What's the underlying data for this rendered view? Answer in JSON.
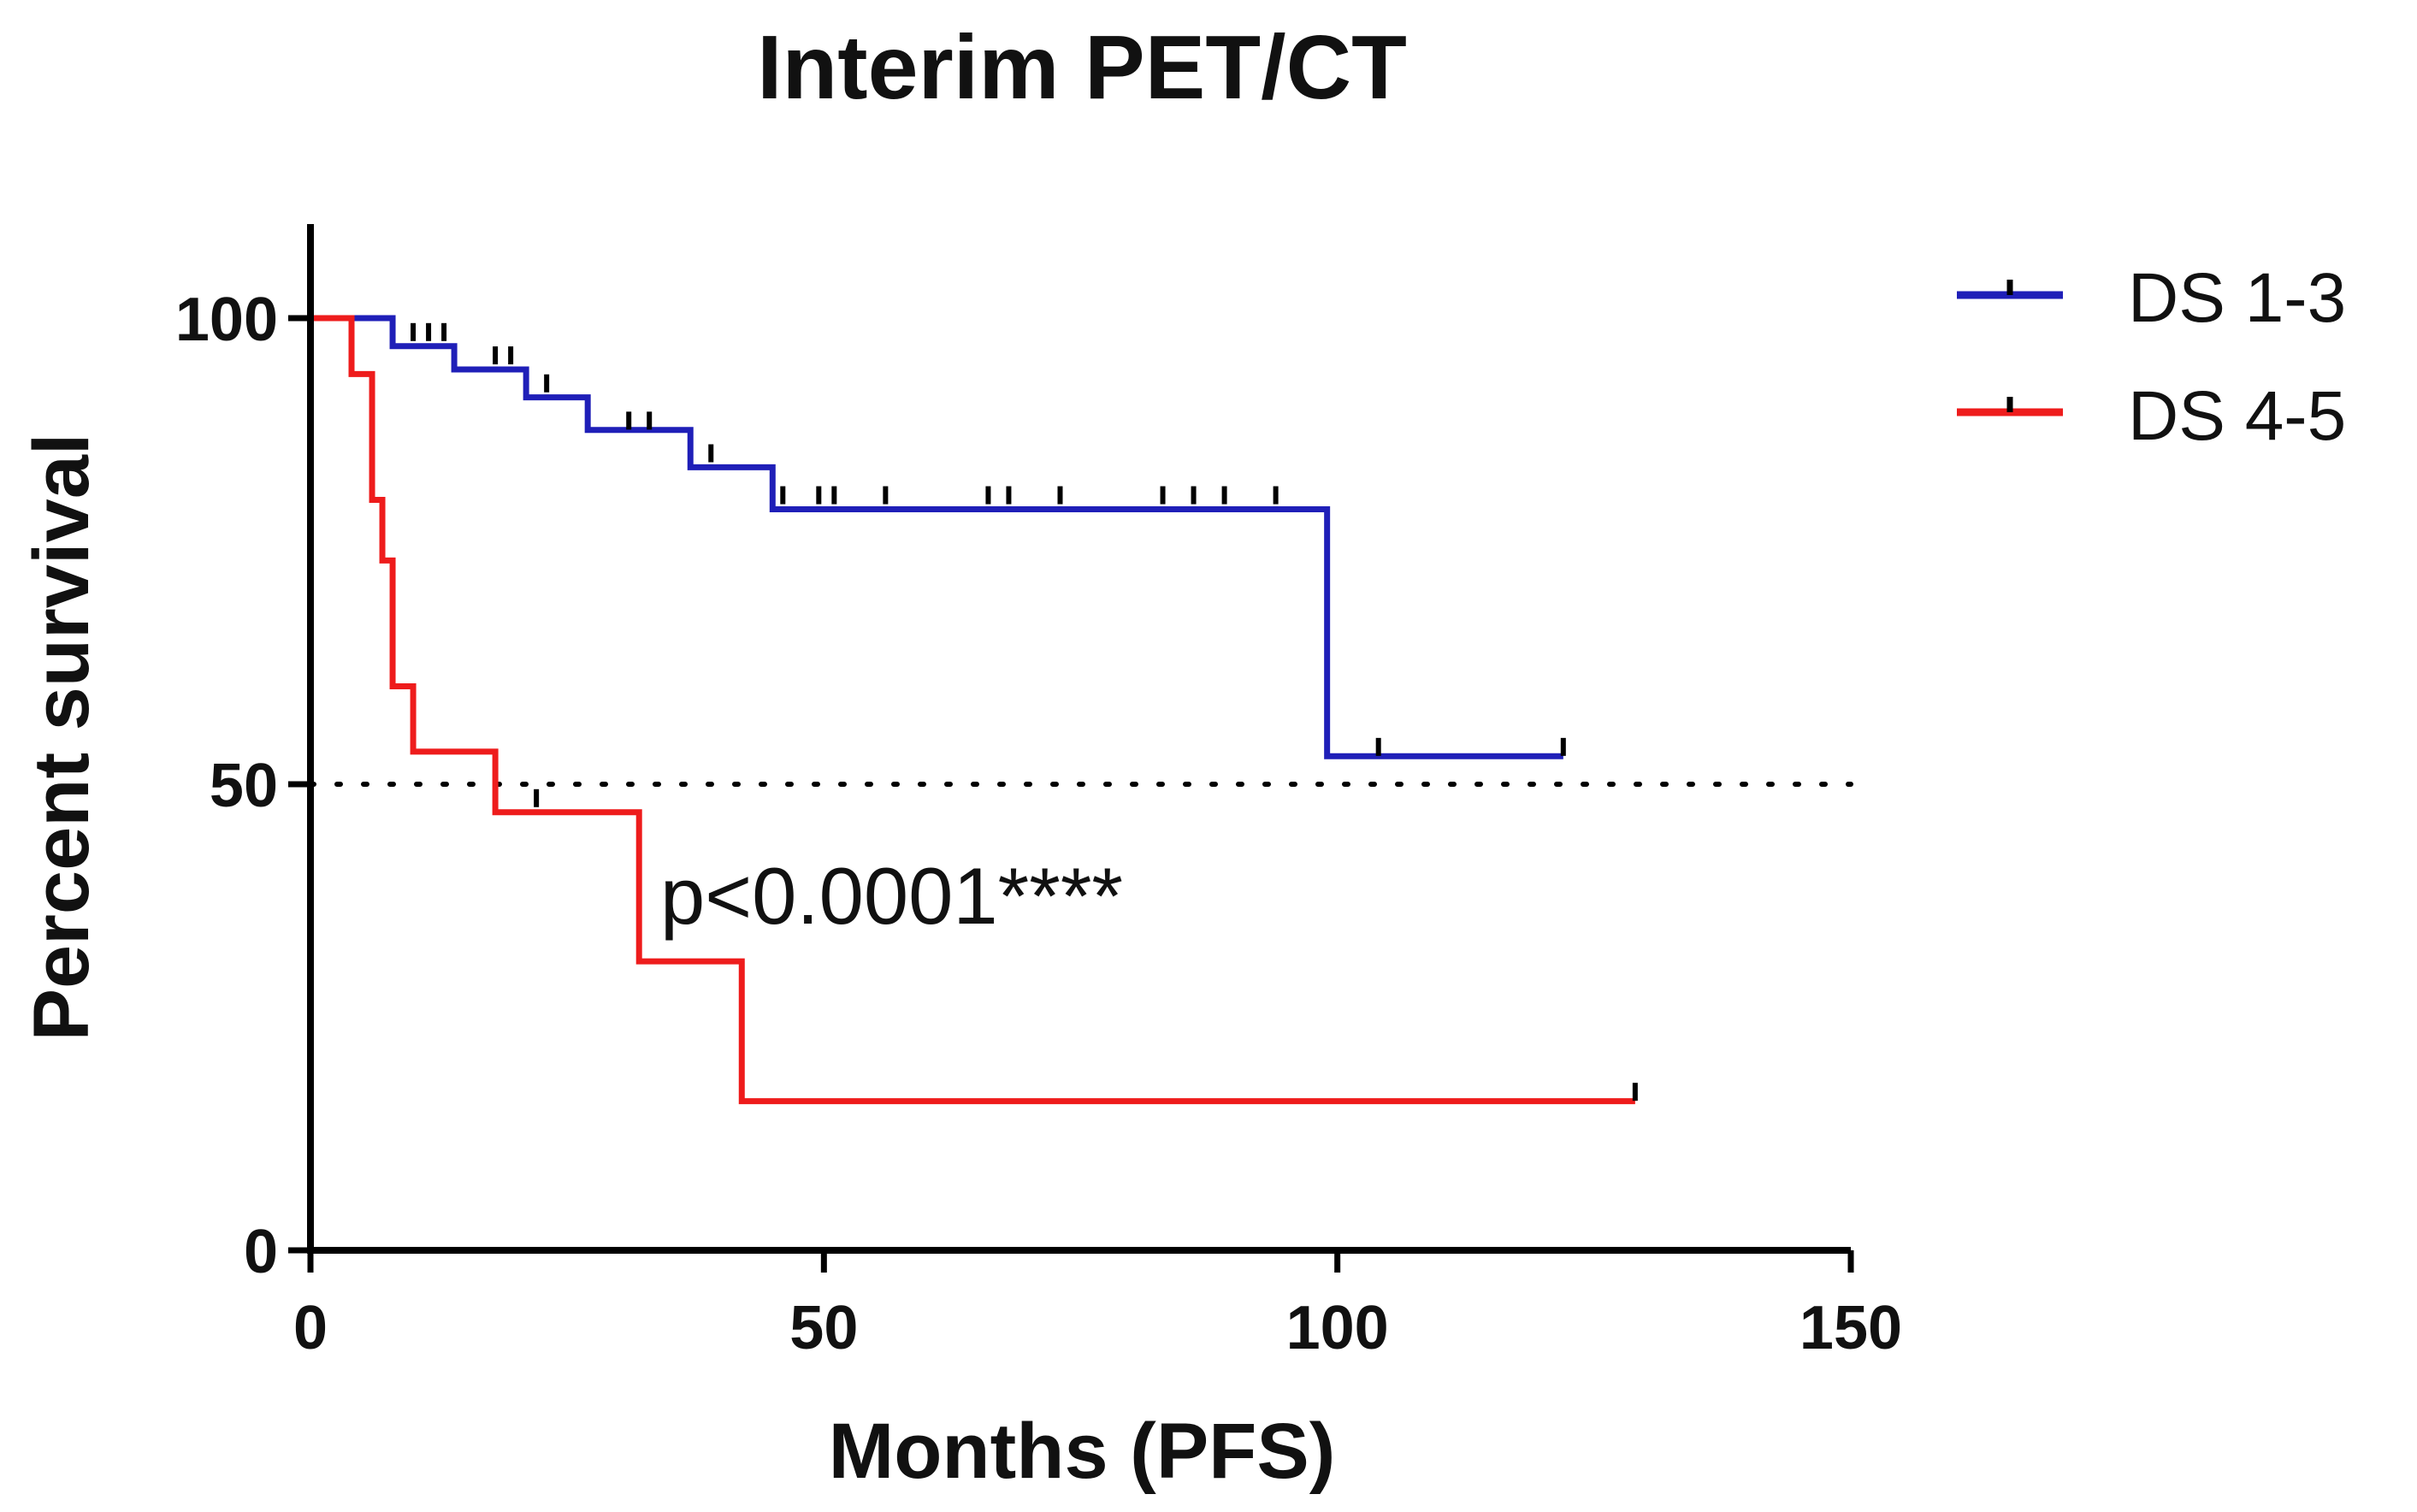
{
  "chart_data": {
    "type": "line",
    "subtype": "kaplan-meier",
    "title": "Interim PET/CT",
    "xlabel": "Months (PFS)",
    "ylabel": "Percent survival",
    "xlim": [
      0,
      150
    ],
    "ylim": [
      0,
      110
    ],
    "xticks": [
      0,
      50,
      100,
      150
    ],
    "yticks": [
      0,
      50,
      100
    ],
    "xtick_labels": [
      "0",
      "50",
      "100",
      "150"
    ],
    "ytick_labels": [
      "0",
      "50",
      "100"
    ],
    "reference_line": {
      "y": 50,
      "style": "dotted"
    },
    "annotation": "p<0.0001****",
    "legend_position": "top-right",
    "series": [
      {
        "name": "DS 1-3",
        "color": "#1f1fb8",
        "steps": [
          [
            0,
            100
          ],
          [
            8,
            97
          ],
          [
            14,
            94.5
          ],
          [
            21,
            91.5
          ],
          [
            27,
            88
          ],
          [
            37,
            84
          ],
          [
            45,
            79.5
          ],
          [
            99,
            53
          ],
          [
            122,
            53
          ]
        ],
        "censored": [
          [
            10,
            98
          ],
          [
            11.5,
            98
          ],
          [
            13,
            98
          ],
          [
            18,
            95.5
          ],
          [
            19.5,
            95.5
          ],
          [
            23,
            92.5
          ],
          [
            31,
            88.5
          ],
          [
            33,
            88.5
          ],
          [
            39,
            85
          ],
          [
            46,
            80.5
          ],
          [
            49.5,
            80.5
          ],
          [
            51,
            80.5
          ],
          [
            56,
            80.5
          ],
          [
            66,
            80.5
          ],
          [
            68,
            80.5
          ],
          [
            73,
            80.5
          ],
          [
            83,
            80.5
          ],
          [
            86,
            80.5
          ],
          [
            89,
            80.5
          ],
          [
            94,
            80.5
          ],
          [
            104,
            53.5
          ],
          [
            122,
            53.5
          ]
        ]
      },
      {
        "name": "DS 4-5",
        "color": "#ee1c1c",
        "steps": [
          [
            0,
            100
          ],
          [
            4,
            94
          ],
          [
            6,
            80.5
          ],
          [
            7,
            74
          ],
          [
            8,
            60.5
          ],
          [
            10,
            53.5
          ],
          [
            18,
            47
          ],
          [
            32,
            31
          ],
          [
            42,
            16
          ],
          [
            129,
            16
          ]
        ],
        "censored": [
          [
            22,
            48
          ],
          [
            129,
            16.5
          ]
        ]
      }
    ]
  }
}
